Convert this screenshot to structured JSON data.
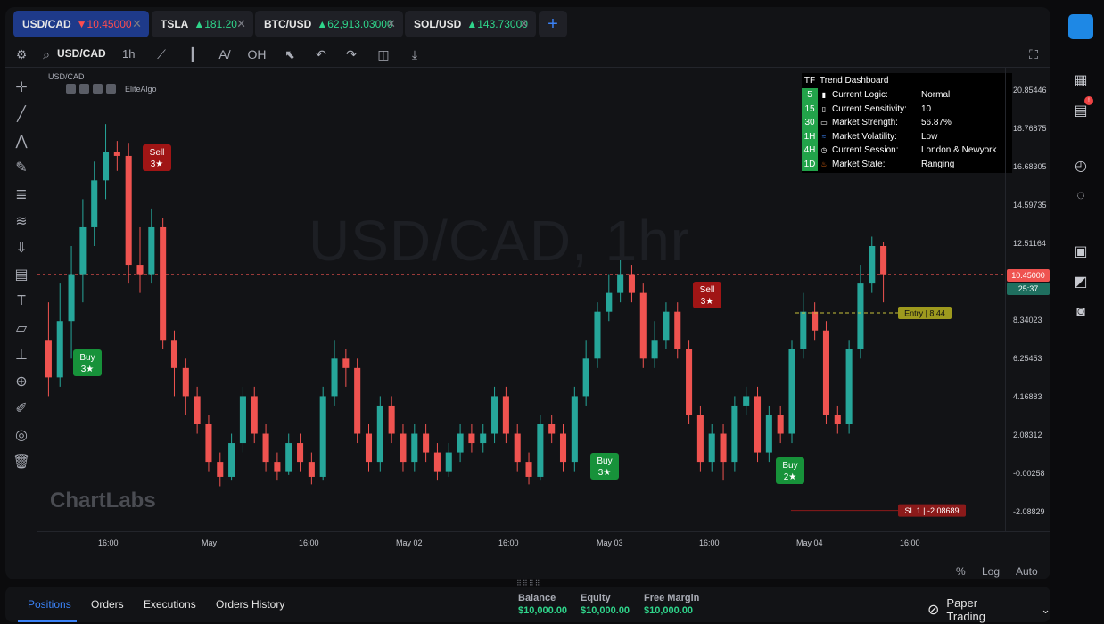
{
  "tabs": [
    {
      "symbol": "USD/CAD",
      "price": "▼10.45000",
      "dir": "down",
      "active": true
    },
    {
      "symbol": "TSLA",
      "price": "▲181.20",
      "dir": "up",
      "active": false
    },
    {
      "symbol": "BTC/USD",
      "price": "▲62,913.03000",
      "dir": "up",
      "active": false
    },
    {
      "symbol": "SOL/USD",
      "price": "▲143.73000",
      "dir": "up",
      "active": false
    }
  ],
  "tab_add": "+",
  "toolbar": {
    "symbol": "USD/CAD",
    "interval": "1h"
  },
  "chart": {
    "symbol_label": "USD/CAD",
    "indicator_name": "EliteAlgo",
    "watermark": "USD/CAD, 1hr",
    "brand": "ChartLabs",
    "current_price": "10.45000",
    "countdown": "25:37",
    "entry_label": "Entry | 8.44",
    "sl_label": "SL 1 | -2.08689",
    "signals": [
      {
        "type": "sell",
        "text": "Sell",
        "stars": "3★"
      },
      {
        "type": "buy",
        "text": "Buy",
        "stars": "3★"
      },
      {
        "type": "buy",
        "text": "Buy",
        "stars": "3★"
      },
      {
        "type": "sell",
        "text": "Sell",
        "stars": "3★"
      },
      {
        "type": "buy",
        "text": "Buy",
        "stars": "2★"
      }
    ]
  },
  "price_axis": [
    "20.85446",
    "18.76875",
    "16.68305",
    "14.59735",
    "12.51164",
    "8.34023",
    "6.25453",
    "4.16883",
    "2.08312",
    "-0.00258",
    "-2.08829"
  ],
  "time_axis": [
    "16:00",
    "May",
    "16:00",
    "May 02",
    "16:00",
    "May 03",
    "16:00",
    "May 04",
    "16:00"
  ],
  "scale_buttons": [
    "%",
    "Log",
    "Auto"
  ],
  "dashboard": {
    "header_tf": "TF",
    "header_title": "Trend Dashboard",
    "rows": [
      {
        "tf": "5",
        "icon": "chip-icon",
        "label": "Current Logic:",
        "value": "Normal"
      },
      {
        "tf": "15",
        "icon": "sliders-icon",
        "label": "Current Sensitivity:",
        "value": "10"
      },
      {
        "tf": "30",
        "icon": "gauge-icon",
        "label": "Market Strength:",
        "value": "56.87%"
      },
      {
        "tf": "1H",
        "icon": "wave-icon",
        "label": "Market Volatility:",
        "value": "Low"
      },
      {
        "tf": "4H",
        "icon": "clock-icon",
        "label": "Current Session:",
        "value": "London & Newyork"
      },
      {
        "tf": "1D",
        "icon": "fire-icon",
        "label": "Market State:",
        "value": "Ranging"
      }
    ]
  },
  "bottom": {
    "tabs": [
      "Positions",
      "Orders",
      "Executions",
      "Orders History"
    ],
    "balance_label": "Balance",
    "balance_value": "$10,000.00",
    "equity_label": "Equity",
    "equity_value": "$10,000.00",
    "margin_label": "Free Margin",
    "margin_value": "$10,000.00",
    "mode": "Paper Trading"
  },
  "colors": {
    "up": "#26a69a",
    "down": "#ef5350",
    "accent": "#3b82f6"
  },
  "chart_data": {
    "type": "candlestick",
    "title": "USD/CAD, 1hr",
    "ylim": [
      -3.2,
      21.5
    ],
    "candles": [
      [
        7,
        5,
        9,
        4
      ],
      [
        5,
        8,
        10,
        4.5
      ],
      [
        8,
        10.5,
        12,
        6
      ],
      [
        10.5,
        13,
        14.5,
        9
      ],
      [
        13,
        15.5,
        16.5,
        12
      ],
      [
        15.5,
        17,
        18.5,
        14.5
      ],
      [
        17,
        16.8,
        17.6,
        16
      ],
      [
        16.8,
        11,
        17.5,
        10
      ],
      [
        11,
        10.5,
        13,
        9.5
      ],
      [
        10.5,
        13,
        14,
        10
      ],
      [
        13,
        7,
        13.5,
        6.5
      ],
      [
        7,
        5.5,
        7.5,
        4
      ],
      [
        5.5,
        4,
        6,
        3
      ],
      [
        4,
        2.5,
        4.5,
        2
      ],
      [
        2.5,
        0.5,
        3,
        0
      ],
      [
        0.5,
        -0.3,
        1,
        -0.8
      ],
      [
        -0.3,
        1.5,
        2,
        -0.5
      ],
      [
        1.5,
        4,
        4.5,
        1
      ],
      [
        4,
        2,
        4.5,
        1.5
      ],
      [
        2,
        0.5,
        2.5,
        0
      ],
      [
        0.5,
        0,
        1,
        -0.5
      ],
      [
        0,
        1.5,
        2,
        -0.2
      ],
      [
        1.5,
        0.5,
        2,
        0
      ],
      [
        0.5,
        -0.3,
        1,
        -0.7
      ],
      [
        -0.3,
        4,
        4.5,
        -0.5
      ],
      [
        4,
        6,
        7,
        3.5
      ],
      [
        6,
        5.5,
        6.5,
        4.5
      ],
      [
        5.5,
        2,
        6,
        1.5
      ],
      [
        2,
        0.5,
        2.5,
        0
      ],
      [
        0.5,
        3.5,
        4,
        0
      ],
      [
        3.5,
        2,
        4,
        1.5
      ],
      [
        2,
        0.5,
        2.5,
        0
      ],
      [
        0.5,
        2,
        2.5,
        0
      ],
      [
        2,
        1,
        2.5,
        0.5
      ],
      [
        1,
        0,
        1.5,
        -0.5
      ],
      [
        0,
        1,
        1.5,
        -0.3
      ],
      [
        1,
        2,
        2.5,
        0.5
      ],
      [
        2,
        1.5,
        2.5,
        1
      ],
      [
        1.5,
        2,
        2.5,
        1
      ],
      [
        2,
        4,
        4.5,
        1.5
      ],
      [
        4,
        2,
        4.5,
        1.5
      ],
      [
        2,
        0.5,
        2.5,
        0
      ],
      [
        0.5,
        -0.3,
        1,
        -0.7
      ],
      [
        -0.3,
        2.5,
        3,
        -0.5
      ],
      [
        2.5,
        2,
        3,
        1.5
      ],
      [
        2,
        0.5,
        2.5,
        0
      ],
      [
        0.5,
        4,
        4.5,
        0
      ],
      [
        4,
        6,
        7,
        3.5
      ],
      [
        6,
        8.5,
        9,
        5.5
      ],
      [
        8.5,
        9.5,
        10.5,
        8
      ],
      [
        9.5,
        10.5,
        11.5,
        9
      ],
      [
        10.5,
        9.5,
        11,
        9
      ],
      [
        9.5,
        6,
        10,
        5.5
      ],
      [
        6,
        7,
        8,
        5.5
      ],
      [
        7,
        8.5,
        9,
        6.5
      ],
      [
        8.5,
        6.5,
        9,
        6
      ],
      [
        6.5,
        3,
        7,
        2.5
      ],
      [
        3,
        0.5,
        3.5,
        0
      ],
      [
        0.5,
        2,
        2.5,
        0
      ],
      [
        2,
        0.5,
        2.5,
        -0.5
      ],
      [
        0.5,
        3.5,
        4,
        0
      ],
      [
        3.5,
        4,
        4.5,
        3
      ],
      [
        4,
        1,
        4.5,
        0.5
      ],
      [
        1,
        3,
        3.5,
        0.5
      ],
      [
        3,
        2,
        3.5,
        1.5
      ],
      [
        2,
        6.5,
        7,
        1.5
      ],
      [
        6.5,
        8.5,
        9.5,
        6
      ],
      [
        8.5,
        7.5,
        9,
        7
      ],
      [
        7.5,
        3,
        8,
        2.5
      ],
      [
        3,
        2.5,
        3.5,
        2
      ],
      [
        2.5,
        6.5,
        7,
        2
      ],
      [
        6.5,
        10,
        11,
        6
      ],
      [
        10,
        12,
        12.5,
        9.5
      ],
      [
        12,
        10.5,
        12.2,
        9
      ]
    ]
  }
}
